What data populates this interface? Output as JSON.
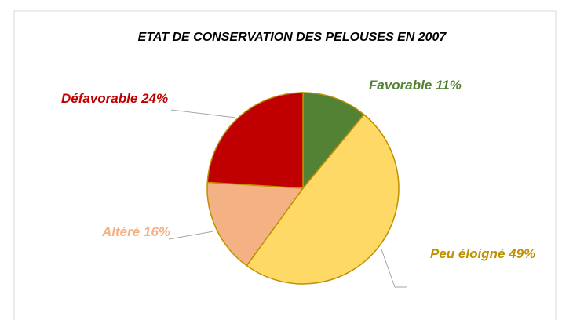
{
  "chart_data": {
    "type": "pie",
    "title": "ETAT DE CONSERVATION DES PELOUSES EN 2007",
    "categories": [
      "Favorable",
      "Peu éloigné",
      "Altéré",
      "Défavorable"
    ],
    "values": [
      11,
      49,
      16,
      24
    ],
    "value_labels": [
      "11%",
      "49%",
      "16%",
      "24%"
    ],
    "colors": [
      "#548235",
      "#ffd966",
      "#f4b183",
      "#c00000"
    ],
    "label_colors": [
      "#548235",
      "#bf9000",
      "#f4b183",
      "#c00000"
    ]
  }
}
